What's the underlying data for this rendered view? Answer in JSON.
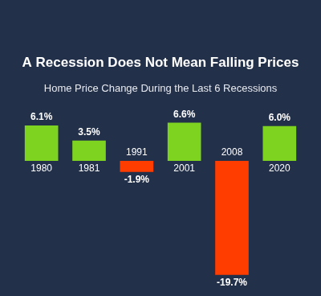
{
  "chart_data": {
    "type": "bar",
    "title": "A Recession Does Not Mean Falling Prices",
    "subtitle": "Home Price Change During the Last 6 Recessions",
    "categories": [
      "1980",
      "1981",
      "1991",
      "2001",
      "2008",
      "2020"
    ],
    "values": [
      6.1,
      3.5,
      -1.9,
      6.6,
      -19.7,
      6.0
    ],
    "value_labels": [
      "6.1%",
      "3.5%",
      "-1.9%",
      "6.6%",
      "-19.7%",
      "6.0%"
    ],
    "colors": [
      "#7ed321",
      "#7ed321",
      "#ff3d00",
      "#7ed321",
      "#ff3d00",
      "#7ed321"
    ],
    "data_labels": true,
    "tick_labels": "x",
    "grid": false
  }
}
